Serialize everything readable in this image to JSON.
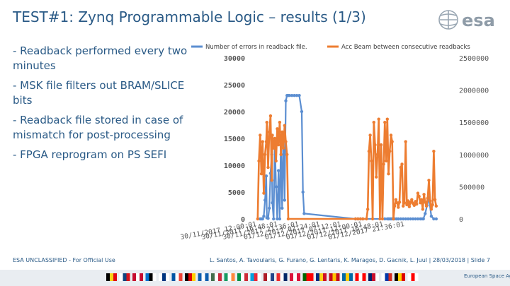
{
  "header": {
    "title": "TEST#1: Zynq Programmable Logic – results (1/3)",
    "logo_text": "esa"
  },
  "bullets": [
    "-   Readback performed every two minutes",
    "-   MSK file filters out BRAM/SLICE bits",
    "-   Readback file stored in case of mismatch for post-processing",
    "-   FPGA reprogram on PS SEFI"
  ],
  "chart_data": {
    "type": "line",
    "title": "",
    "legend_placement": "top",
    "grid": false,
    "x_tick_labels": [
      "30/11/2017 12:00:01",
      "30/11/2017 16:48:01",
      "30/11/2017 21:36:01",
      "01/12/2017 02:24:01",
      "01/12/2017 07:12:01",
      "01/12/2017 12:00:01",
      "01/12/2017 16:48:01",
      "01/12/2017 21:36:01"
    ],
    "x_range_hours": [
      0,
      33.6
    ],
    "y_left": {
      "ticks": [
        0,
        5000,
        10000,
        15000,
        20000,
        25000,
        30000
      ],
      "labels": [
        "0",
        "5000",
        "10000",
        "15000",
        "20000",
        "25000",
        "30000"
      ],
      "range": [
        0,
        30000
      ]
    },
    "y_right": {
      "ticks": [
        0,
        500000,
        1000000,
        1500000,
        2000000,
        2500000
      ],
      "labels": [
        "0",
        "500000",
        "1000000",
        "1500000",
        "2000000",
        "2500000"
      ],
      "range": [
        0,
        2500000
      ]
    },
    "series": [
      {
        "name": "Number of errors in readback file.",
        "axis": "left",
        "color": "#5b8ed1",
        "marker": "circle",
        "x": [
          2.0,
          2.2,
          2.4,
          2.6,
          2.8,
          3.0,
          3.1,
          3.3,
          3.5,
          3.7,
          3.9,
          4.0,
          4.2,
          4.4,
          4.6,
          4.8,
          5.0,
          5.2,
          5.4,
          5.6,
          5.8,
          6.0,
          6.2,
          6.4,
          6.6,
          6.8,
          7.2,
          7.6,
          8.0,
          8.4,
          8.8,
          9.0,
          9.2,
          17.6,
          18.0,
          18.4,
          18.8,
          22.4,
          22.8,
          23.0,
          23.2,
          23.4,
          23.6,
          23.8,
          24.0,
          24.3,
          24.6,
          25.0,
          25.4,
          25.8,
          26.2,
          26.6,
          27.0,
          27.4,
          27.8,
          28.2,
          28.5,
          28.7,
          29.0,
          29.3,
          29.6,
          30.0,
          30.4,
          30.8
        ],
        "values": [
          0,
          0,
          0,
          500,
          3500,
          8000,
          200,
          100,
          2000,
          8500,
          12000,
          3000,
          0,
          14500,
          6000,
          0,
          9000,
          0,
          15000,
          2000,
          16000,
          3500,
          22000,
          23000,
          23000,
          23000,
          23000,
          23000,
          23000,
          23000,
          20000,
          5000,
          1000,
          0,
          0,
          0,
          0,
          0,
          0,
          0,
          0,
          0,
          0,
          0,
          0,
          0,
          0,
          0,
          0,
          0,
          0,
          0,
          0,
          0,
          0,
          0,
          0,
          0,
          1000,
          2500,
          4000,
          500,
          0,
          0
        ]
      },
      {
        "name": "Acc Beam between consecutive readbacks",
        "axis": "right",
        "color": "#ed7d31",
        "marker": "circle",
        "x": [
          1.6,
          1.8,
          2.0,
          2.2,
          2.4,
          2.6,
          2.8,
          3.0,
          3.1,
          3.3,
          3.5,
          3.7,
          3.9,
          4.0,
          4.2,
          4.4,
          4.6,
          4.8,
          5.0,
          5.2,
          5.4,
          5.6,
          5.8,
          6.0,
          6.2,
          6.4,
          6.6,
          17.6,
          18.0,
          18.4,
          18.8,
          19.4,
          19.6,
          19.8,
          20.0,
          20.2,
          20.4,
          20.6,
          20.8,
          21.0,
          21.2,
          21.4,
          21.6,
          21.8,
          22.0,
          22.2,
          22.4,
          22.6,
          22.8,
          23.0,
          23.2,
          23.4,
          23.6,
          23.8,
          24.0,
          24.2,
          24.4,
          24.6,
          24.8,
          25.0,
          25.2,
          25.4,
          25.6,
          25.8,
          26.0,
          26.2,
          26.4,
          26.6,
          26.8,
          27.0,
          27.2,
          27.4,
          27.6,
          27.8,
          28.0,
          28.2,
          28.4,
          28.6,
          28.8,
          29.0,
          29.2,
          29.4,
          29.6,
          29.8,
          30.0,
          30.2,
          30.4,
          30.6,
          30.8
        ],
        "values": [
          0,
          900000,
          1300000,
          700000,
          1200000,
          400000,
          1000000,
          1200000,
          1500000,
          800000,
          1350000,
          1600000,
          600000,
          1300000,
          1100000,
          1250000,
          900000,
          1400000,
          1150000,
          1500000,
          1000000,
          1350000,
          1100000,
          1450000,
          1200000,
          1000000,
          0,
          0,
          0,
          0,
          0,
          0,
          150000,
          1050000,
          1300000,
          900000,
          0,
          1500000,
          1150000,
          650000,
          1000000,
          1550000,
          0,
          1150000,
          0,
          850000,
          1500000,
          900000,
          1550000,
          700000,
          1050000,
          1300000,
          1200000,
          0,
          200000,
          300000,
          250000,
          180000,
          260000,
          800000,
          850000,
          200000,
          250000,
          1200000,
          220000,
          280000,
          190000,
          260000,
          300000,
          240000,
          210000,
          270000,
          230000,
          400000,
          350000,
          250000,
          300000,
          150000,
          380000,
          260000,
          200000,
          320000,
          600000,
          280000,
          150000,
          220000,
          1050000,
          300000,
          200000
        ]
      }
    ]
  },
  "footer": {
    "classification": "ESA UNCLASSIFIED - For Official Use",
    "authors": "L. Santos, A. Tavoularis, G. Furano, G. Lentaris, K. Maragos, D. Gacnik, L. Juul | 28/03/2018 | Slide 7"
  },
  "bottom_bar": {
    "agency": "European Space Agency"
  },
  "colors": {
    "title": "#2a5a86",
    "series_blue": "#5b8ed1",
    "series_orange": "#ed7d31"
  }
}
